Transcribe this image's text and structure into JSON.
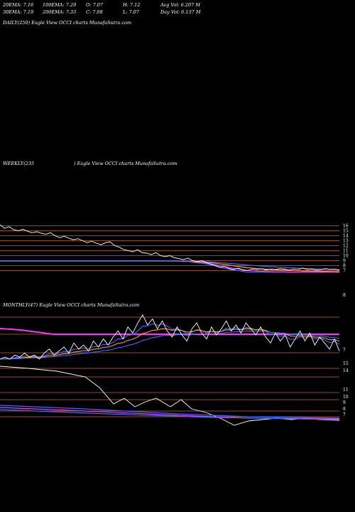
{
  "header": {
    "ema20": "20EMA: 7.16",
    "ema100": "100EMA: 7.29",
    "open": "O: 7.07",
    "high": "H: 7.12",
    "avg_vol": "Avg Vol: 6.207 M",
    "ema30": "30EMA: 7.19",
    "ema200": "200EMA: 7.33",
    "close": "C: 7.08",
    "low": "L: 7.07",
    "day_vol": "Day Vol: 6.137 M"
  },
  "panels": {
    "daily": "DAILY(250) Eagle  View  OCCI charts MunafaSutra.com",
    "weekly_left": "WEEKLY(235",
    "weekly_right": ") Eagle   View  OCCI charts MunafaSutra.com",
    "monthly": "MONTHLY(47) Eagle   View  OCCI charts MunafaSutra.com"
  },
  "colors": {
    "background": "#000000",
    "price": "#ffffff",
    "ema_blue": "#3a6cff",
    "ema_magenta": "#ff33ff",
    "ema_orange": "#ff9a2e",
    "hline": "#c86428"
  },
  "chart_data": [
    {
      "type": "line",
      "name": "weekly",
      "y_ticks": [
        16,
        15,
        14,
        13,
        12,
        11,
        10,
        9,
        8,
        7
      ],
      "extra_tick": "8",
      "ylim": [
        6.5,
        16.5
      ],
      "series": [
        {
          "values": [
            16.2,
            15.5,
            15.8,
            15.2,
            15.0,
            15.3,
            14.9,
            14.6,
            14.8,
            14.5,
            14.3,
            14.6,
            14.0,
            13.6,
            13.9,
            13.5,
            13.2,
            13.4,
            13.0,
            12.6,
            12.9,
            12.5,
            12.2,
            12.6,
            12.8,
            12.0,
            11.7,
            11.2,
            11.0,
            10.8,
            11.2,
            10.6,
            10.5,
            10.2,
            10.6,
            10.0,
            9.8,
            10.0,
            9.6,
            9.4,
            9.2,
            9.5,
            9.0,
            8.8,
            9.0,
            8.6,
            8.3,
            8.0,
            7.7,
            7.8,
            7.4,
            7.2,
            7.5,
            7.1,
            7.0,
            7.3,
            7.2,
            7.4,
            7.1,
            7.3,
            7.2,
            7.4,
            7.3,
            7.1,
            7.3,
            7.2,
            7.5,
            7.2,
            7.3,
            7.1,
            7.2,
            7.4,
            7.2,
            7.3,
            7.1
          ]
        }
      ]
    },
    {
      "type": "line",
      "name": "monthly",
      "y_ticks": [
        7
      ],
      "extra_ticks": [
        "15",
        "14",
        "11",
        "10",
        "9",
        "8",
        "7"
      ],
      "series": [
        {
          "values": [
            7.0,
            7.1,
            7.0,
            7.2,
            7.1,
            7.3,
            7.1,
            7.2,
            7.0,
            7.3,
            7.5,
            7.2,
            7.4,
            7.6,
            7.3,
            7.8,
            7.5,
            7.7,
            7.4,
            7.9,
            7.6,
            8.0,
            7.7,
            8.1,
            8.4,
            8.0,
            8.6,
            8.3,
            8.8,
            9.2,
            8.7,
            9.0,
            8.5,
            8.9,
            8.4,
            8.1,
            8.6,
            8.2,
            7.9,
            8.5,
            8.8,
            8.3,
            8.0,
            8.6,
            8.2,
            8.5,
            8.9,
            8.4,
            8.7,
            8.3,
            8.8,
            8.5,
            8.2,
            8.6,
            8.1,
            7.8,
            8.3,
            7.9,
            8.2,
            7.6,
            8.0,
            8.4,
            7.9,
            8.3,
            7.7,
            8.1,
            7.8,
            7.5,
            8.0,
            7.4
          ]
        }
      ]
    }
  ]
}
